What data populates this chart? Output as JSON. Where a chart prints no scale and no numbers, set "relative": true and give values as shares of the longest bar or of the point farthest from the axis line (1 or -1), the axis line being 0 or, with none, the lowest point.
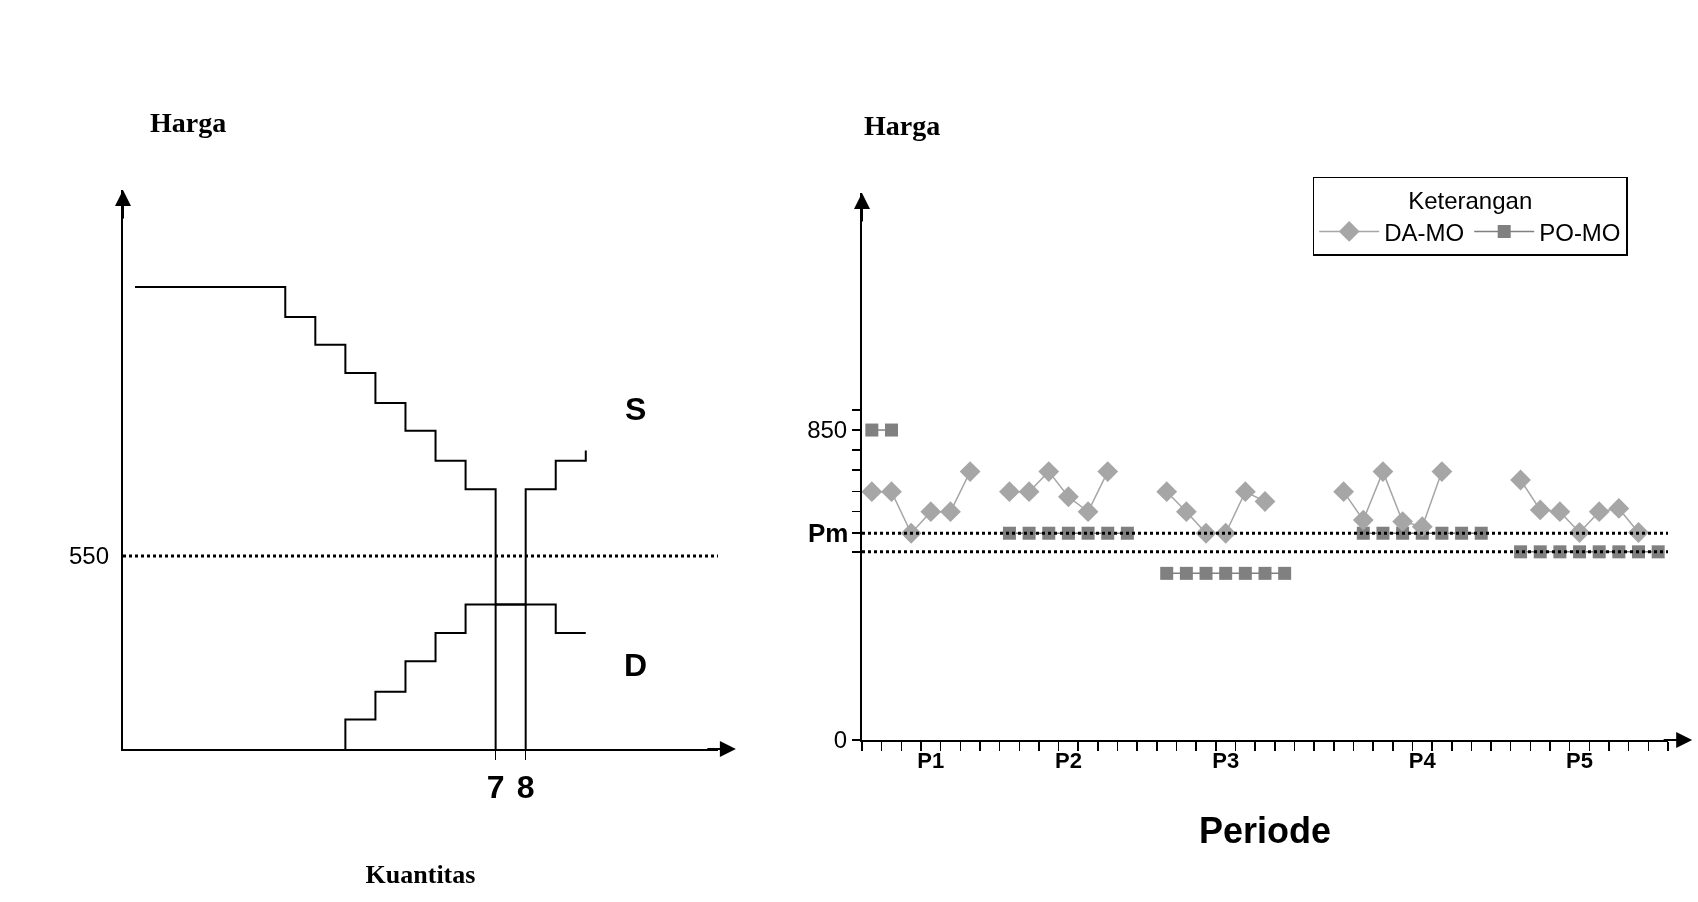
{
  "chart_data": [
    {
      "type": "step",
      "relative": true,
      "tick_labels": "x",
      "xlabel": "Kuantitas",
      "ylabel": "Harga",
      "xlim": [
        -5.4,
        14.4
      ],
      "xticks": [
        7,
        8
      ],
      "annotations": [
        "550"
      ],
      "ref_lines": [
        {
          "axis": "y",
          "value": 0.418,
          "line_style": "dotted",
          "color": "#000000"
        }
      ],
      "series": [
        {
          "name": "S",
          "color": "#000000",
          "x": [
            2,
            2,
            3,
            4,
            5,
            6,
            8,
            9,
            10
          ],
          "values": [
            0,
            0.064,
            0.124,
            0.19,
            0.251,
            0.313,
            0.562,
            0.624,
            0.646
          ]
        },
        {
          "name": "D",
          "color": "#000000",
          "x": [
            -5,
            0,
            1,
            2,
            3,
            4,
            5,
            6,
            7,
            9,
            10
          ],
          "values": [
            1,
            0.935,
            0.875,
            0.814,
            0.749,
            0.689,
            0.624,
            0.562,
            0.313,
            0.251,
            0.251
          ]
        },
        {
          "type": "line",
          "color": "#000000",
          "x": [
            7,
            7
          ],
          "values": [
            0,
            0.313
          ]
        },
        {
          "type": "line",
          "color": "#000000",
          "x": [
            8,
            8
          ],
          "values": [
            0,
            0.313
          ]
        }
      ]
    },
    {
      "type": "line",
      "xlabel": "Periode",
      "ylabel": "Harga",
      "legend": "top right",
      "legend_title": "Keterangan",
      "ylim": [
        0,
        1500
      ],
      "categories": [
        null,
        null,
        null,
        "P1",
        null,
        null,
        null,
        null,
        null,
        null,
        "P2",
        null,
        null,
        null,
        null,
        null,
        null,
        null,
        "P3",
        null,
        null,
        null,
        null,
        null,
        null,
        null,
        null,
        null,
        "P4",
        null,
        null,
        null,
        null,
        null,
        null,
        null,
        "P5",
        null,
        null,
        null,
        null
      ],
      "yticks": [
        0,
        {
          "value": 516,
          "label": null
        },
        {
          "value": 567,
          "label": null
        },
        {
          "value": 626,
          "label": null
        },
        {
          "value": 681,
          "label": null
        },
        {
          "value": 740,
          "label": null
        },
        {
          "value": 795,
          "label": null
        },
        850,
        {
          "value": 905,
          "label": null
        }
      ],
      "ref_lines": [
        {
          "axis": "y",
          "value": 567,
          "label": "Pm",
          "line_style": "dotted",
          "color": "#000000"
        },
        {
          "axis": "y",
          "value": 516,
          "line_style": "dotted",
          "color": "#000000"
        }
      ],
      "series": [
        {
          "name": "PO-MO",
          "color": "#808080",
          "marker": "square",
          "line_style": "solid",
          "values": [
            850,
            850,
            null,
            null,
            null,
            null,
            null,
            567,
            567,
            567,
            567,
            567,
            567,
            567,
            null,
            457,
            457,
            457,
            457,
            457,
            457,
            457,
            null,
            null,
            null,
            567,
            567,
            567,
            567,
            567,
            567,
            567,
            null,
            516,
            516,
            516,
            516,
            516,
            516,
            516,
            516
          ]
        },
        {
          "name": "DA-MO",
          "color": "#a6a6a6",
          "marker": "diamond",
          "line_style": "solid",
          "values": [
            681,
            681,
            567,
            626,
            626,
            736,
            null,
            681,
            681,
            736,
            667,
            626,
            736,
            null,
            null,
            681,
            626,
            567,
            567,
            681,
            654,
            null,
            null,
            null,
            681,
            603,
            736,
            599,
            585,
            736,
            null,
            null,
            null,
            713,
            631,
            626,
            569,
            626,
            635,
            569,
            null
          ]
        }
      ]
    }
  ]
}
